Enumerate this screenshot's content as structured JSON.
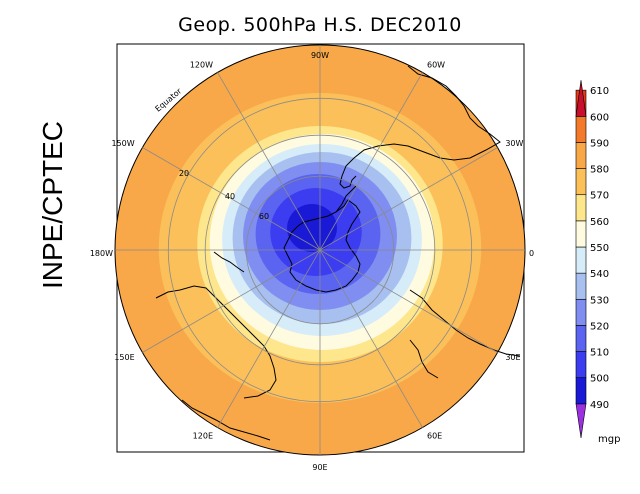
{
  "title": "Geop. 500hPa H.S. DEC2010",
  "side_label": "INPE/CPTEC",
  "map": {
    "projection": "polar-stereographic-south",
    "longitude_labels": [
      {
        "text": "90W",
        "bearing": 0
      },
      {
        "text": "60W",
        "bearing": 30
      },
      {
        "text": "30W",
        "bearing": 60
      },
      {
        "text": "0",
        "bearing": 90
      },
      {
        "text": "30E",
        "bearing": 120
      },
      {
        "text": "60E",
        "bearing": 150
      },
      {
        "text": "90E",
        "bearing": 180
      },
      {
        "text": "120E",
        "bearing": 210
      },
      {
        "text": "150E",
        "bearing": 240
      },
      {
        "text": "180W",
        "bearing": 270
      },
      {
        "text": "150W",
        "bearing": 300
      },
      {
        "text": "120W",
        "bearing": 330
      }
    ],
    "latitude_labels": [
      {
        "text": "Equator",
        "lat": 0
      },
      {
        "text": "20",
        "lat": -20
      },
      {
        "text": "40",
        "lat": -40
      },
      {
        "text": "60",
        "lat": -60
      }
    ]
  },
  "colorbar": {
    "unit": "mgp",
    "levels": [
      "490",
      "500",
      "510",
      "520",
      "530",
      "540",
      "550",
      "560",
      "570",
      "580",
      "590",
      "600",
      "610"
    ],
    "colors": [
      "#9b30e0",
      "#1a1ad6",
      "#3c3cf0",
      "#5a64f0",
      "#7f8ef0",
      "#a8c0f0",
      "#d6ecf8",
      "#fffbe0",
      "#fde68c",
      "#fbc05a",
      "#f8a848",
      "#f37a2a",
      "#e83a18",
      "#c8102e"
    ]
  },
  "colors": {
    "ocean_base": "#f7a445",
    "coast": "#000000",
    "grid": "#8a8a8a"
  }
}
